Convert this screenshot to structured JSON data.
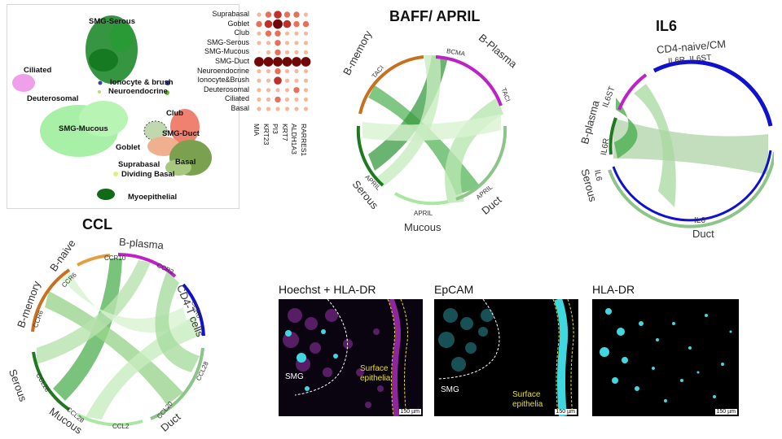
{
  "umap": {
    "clusters": {
      "smg_serous": "SMG-Serous",
      "ciliated": "Ciliated",
      "ionocyte": "Ionocyte & brush",
      "neuroendocrine": "Neuroendocrine",
      "deuterosomal": "Deuterosomal",
      "club": "Club",
      "smg_mucous": "SMG-Mucous",
      "smg_duct": "SMG-Duct",
      "goblet": "Goblet",
      "basal": "Basal",
      "suprabasal": "Suprabasal",
      "dividing_basal": "Dividing Basal",
      "myoepithelial": "Myoepithelial"
    }
  },
  "dotplot": {
    "rows": [
      "Suprabasal",
      "Goblet",
      "Club",
      "SMG-Serous",
      "SMG-Mucous",
      "SMG-Duct",
      "Neuroendocrine",
      "Ionocyte&Brush",
      "Deuterosomal",
      "Ciliated",
      "Basal"
    ],
    "genes": [
      "MIA",
      "KRT23",
      "PI3",
      "KRT7",
      "ALDH1A3",
      "RARRES1"
    ]
  },
  "baff_april": {
    "title": "BAFF/ APRIL",
    "labels": {
      "b_memory": "B-memory",
      "taci_left": "TACI",
      "bcma": "BCMA",
      "b_plasma": "B-Plasma",
      "taci_right": "TACI",
      "april_serous": "APRIL",
      "serous": "Serous",
      "april_mucous": "APRIL",
      "mucous": "Mucous",
      "april_duct": "APRIL",
      "duct": "Duct"
    }
  },
  "il6": {
    "title": "IL6",
    "labels": {
      "cd4": "CD4-naive/CM",
      "il6r_il6st": "IL6R_IL6ST",
      "il6st": "IL6ST",
      "b_plasma": "B-plasma",
      "il6r": "IL6R",
      "il6_serous": "IL6",
      "serous": "Serous",
      "il6_duct": "IL6",
      "duct": "Duct"
    }
  },
  "ccl": {
    "title": "CCL",
    "labels": {
      "b_naive": "B-naive",
      "b_plasma": "B-plasma",
      "ccr10": "CCR10",
      "ccr6_naive": "CCR6",
      "ccr2": "CCR2",
      "b_memory": "B-memory",
      "ccr6_memory": "CCR6",
      "cd4_t": "CD4-T cells",
      "ccr6_cd4": "CCR6",
      "serous": "Serous",
      "ccl28_serous": "CCL28",
      "ccl28_mucous": "CCL28",
      "mucous": "Mucous",
      "ccl2": "CCL2",
      "ccl20": "CCL20",
      "ccl28_duct": "CCL28",
      "duct": "Duct"
    }
  },
  "micrographs": {
    "panel1_title": "Hoechst + HLA-DR",
    "panel2_title": "EpCAM",
    "panel3_title": "HLA-DR",
    "smg": "SMG",
    "surface": "Surface\nepithelia",
    "scale": "150 µm"
  },
  "colors": {
    "serous_green": "#1f7a1f",
    "mucous_green": "#9ee69a",
    "duct_green": "#7fbf6f",
    "chord_green": "#4caf50",
    "b_orange": "#c87020",
    "b_plasma_magenta": "#c020c8",
    "cd4_blue": "#1010d0",
    "cyan": "#40d8e0",
    "magenta_stain": "#b030c0",
    "yellow_outline": "#e8e020"
  }
}
